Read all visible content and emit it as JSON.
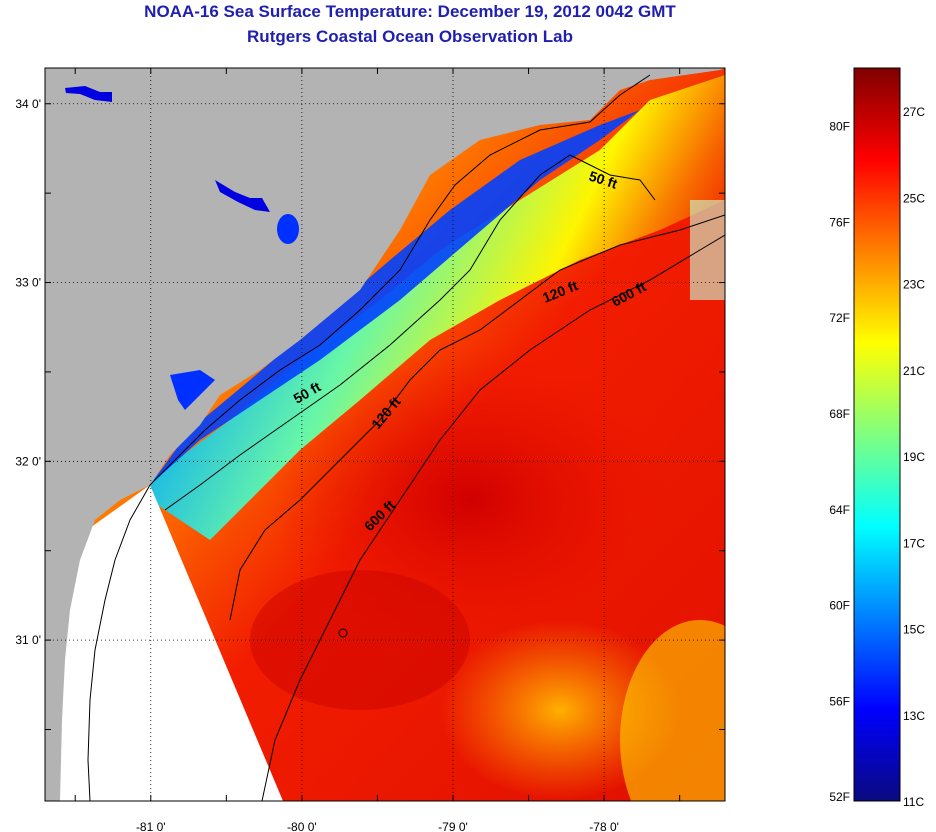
{
  "title": {
    "line1": "NOAA-16 Sea Surface Temperature:  December 19, 2012 0042 GMT",
    "line2": "Rutgers Coastal Ocean Observation Lab"
  },
  "map": {
    "lon_range": [
      -81.7,
      -77.2
    ],
    "lat_range": [
      30.1,
      34.2
    ],
    "lon_ticks": [
      {
        "value": -81,
        "label": "-81 0'"
      },
      {
        "value": -80,
        "label": "-80 0'"
      },
      {
        "value": -79,
        "label": "-79 0'"
      },
      {
        "value": -78,
        "label": "-78 0'"
      }
    ],
    "lat_ticks": [
      {
        "value": 34,
        "label": "34 0'"
      },
      {
        "value": 33,
        "label": "33 0'"
      },
      {
        "value": 32,
        "label": "32 0'"
      },
      {
        "value": 31,
        "label": "31 0'"
      }
    ],
    "contour_labels": {
      "c50_north": "50 ft",
      "c50_south": "50 ft",
      "c120_north": "120 ft",
      "c120_south": "120 ft",
      "c600_north": "600 ft",
      "c600_south": "600 ft"
    },
    "colors": {
      "land": "#b3b3b3",
      "no_data": "#ffffff",
      "grid": "#000000"
    }
  },
  "colorbar": {
    "range_c": [
      11,
      28
    ],
    "fahrenheit_labels": [
      "80F",
      "76F",
      "72F",
      "68F",
      "64F",
      "60F",
      "56F",
      "52F"
    ],
    "celsius_labels": [
      "27C",
      "25C",
      "23C",
      "21C",
      "19C",
      "17C",
      "15C",
      "13C",
      "11C"
    ],
    "stops": [
      "#0a0a80",
      "#0000ff",
      "#0080ff",
      "#00ffff",
      "#80ff80",
      "#ffff00",
      "#ff8000",
      "#ff0000",
      "#800000"
    ]
  }
}
